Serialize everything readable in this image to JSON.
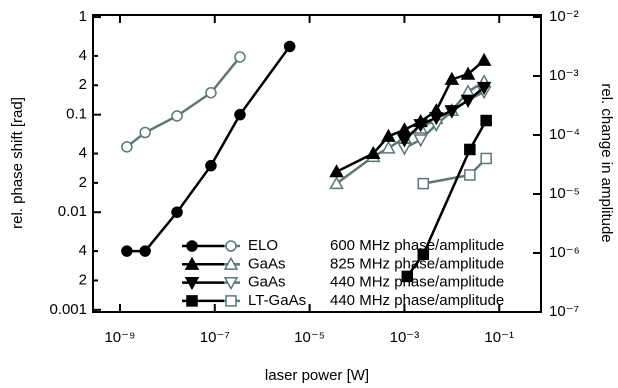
{
  "chart_data": {
    "type": "line",
    "x_label": "laser power [W]",
    "y_label": "rel. phase shift [rad]",
    "y2_label": "rel. change in amplitude",
    "log_x": true,
    "log_y": true,
    "log_y2": true,
    "phase_color": "#000000",
    "amplitude_color": "#5f7676",
    "xlim": [
      2.7e-10,
      0.76
    ],
    "ylim": [
      0.00095,
      1.05
    ],
    "y2lim": [
      1e-07,
      0.0108
    ],
    "xticks": [
      {
        "value": 1e-09,
        "label": "10⁻⁹"
      },
      {
        "value": 1e-07,
        "label": "10⁻⁷"
      },
      {
        "value": 1e-05,
        "label": "10⁻⁵"
      },
      {
        "value": 0.001,
        "label": "10⁻³"
      },
      {
        "value": 0.1,
        "label": "10⁻¹"
      }
    ],
    "yticks": [
      1,
      {
        "value": 0.4,
        "label": "4"
      },
      {
        "value": 0.2,
        "label": "2"
      },
      0.1,
      {
        "value": 0.04,
        "label": "4"
      },
      {
        "value": 0.02,
        "label": "2"
      },
      0.01,
      {
        "value": 0.004,
        "label": "4"
      },
      {
        "value": 0.002,
        "label": "2"
      },
      0.001
    ],
    "y2ticks": [
      {
        "value": 0.01,
        "label": "10⁻²"
      },
      {
        "value": 0.001,
        "label": "10⁻³"
      },
      {
        "value": 0.0001,
        "label": "10⁻⁴"
      },
      {
        "value": 1e-05,
        "label": "10⁻⁵"
      },
      {
        "value": 1e-06,
        "label": "10⁻⁶"
      },
      {
        "value": 1e-07,
        "label": "10⁻⁷"
      }
    ],
    "series": [
      {
        "name": "ELO",
        "note": "600 MHz phase/amplitude",
        "marker": "circle",
        "phase": {
          "x": [
            1.4e-09,
            3.4e-09,
            1.6e-08,
            8.3e-08,
            3.4e-07,
            3.8e-06
          ],
          "values": [
            0.004,
            0.004,
            0.01,
            0.03,
            0.1,
            0.5
          ]
        },
        "amplitude": {
          "axis": "y2",
          "x": [
            1.4e-09,
            3.4e-09,
            1.6e-08,
            8.3e-08,
            3.4e-07
          ],
          "values": [
            6.3e-05,
            0.00011,
            0.00021,
            0.00052,
            0.0021
          ]
        }
      },
      {
        "name": "GaAs",
        "note": "825 MHz phase/amplitude",
        "marker": "triangle-up",
        "phase": {
          "x": [
            3.7e-05,
            0.00022,
            0.00046,
            0.001,
            0.0022,
            0.0047,
            0.01,
            0.022,
            0.048
          ],
          "values": [
            0.026,
            0.04,
            0.06,
            0.07,
            0.085,
            0.11,
            0.23,
            0.26,
            0.36
          ]
        },
        "amplitude": {
          "axis": "y2",
          "x": [
            3.7e-05,
            0.00022,
            0.00046,
            0.001,
            0.0022,
            0.0047,
            0.01,
            0.022,
            0.048
          ],
          "values": [
            1.5e-05,
            4.3e-05,
            6e-05,
            8.9e-05,
            0.00013,
            0.00019,
            0.00026,
            0.00054,
            0.0008
          ]
        }
      },
      {
        "name": "GaAs",
        "note": "440 MHz phase/amplitude",
        "marker": "triangle-down",
        "phase": {
          "x": [
            0.001,
            0.0022,
            0.0047,
            0.01,
            0.022,
            0.048
          ],
          "values": [
            0.055,
            0.079,
            0.093,
            0.11,
            0.14,
            0.19
          ]
        },
        "amplitude": {
          "axis": "y2",
          "x": [
            0.001,
            0.0022,
            0.0047,
            0.01,
            0.022,
            0.048
          ],
          "values": [
            6e-05,
            8.3e-05,
            0.00015,
            0.00025,
            0.00039,
            0.00054
          ]
        }
      },
      {
        "name": "LT-GaAs",
        "note": "440 MHz phase/amplitude",
        "marker": "square",
        "phase": {
          "x": [
            0.00115,
            0.0025,
            0.024,
            0.053
          ],
          "values": [
            0.0022,
            0.0037,
            0.044,
            0.087
          ]
        },
        "amplitude": {
          "axis": "y2",
          "x": [
            0.0025,
            0.024,
            0.053
          ],
          "values": [
            1.5e-05,
            2.1e-05,
            4e-05
          ]
        }
      }
    ]
  }
}
